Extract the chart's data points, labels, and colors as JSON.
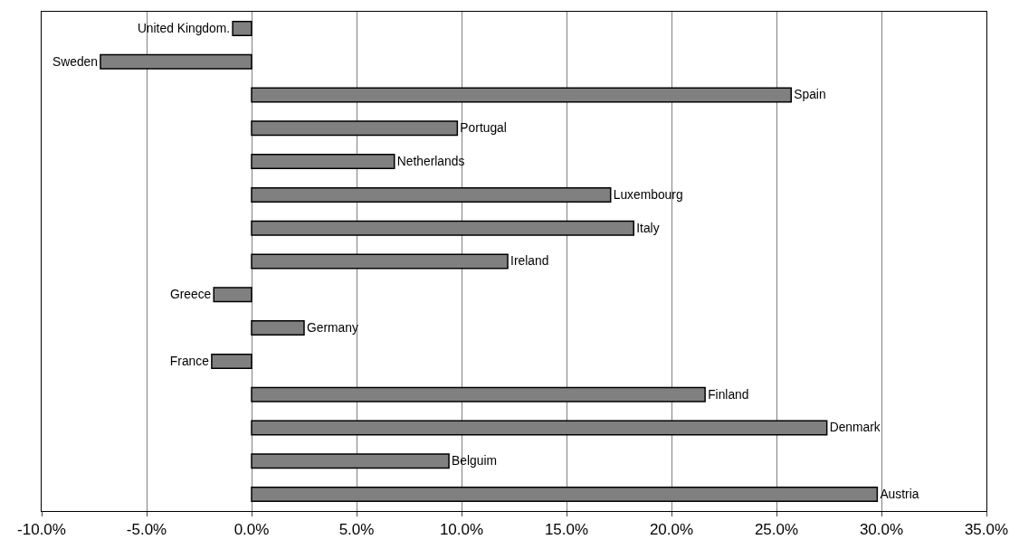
{
  "chart_data": {
    "type": "bar",
    "orientation": "horizontal",
    "categories": [
      "United Kingdom.",
      "Sweden",
      "Spain",
      "Portugal",
      "Netherlands",
      "Luxembourg",
      "Italy",
      "Ireland",
      "Greece",
      "Germany",
      "France",
      "Finland",
      "Denmark",
      "Belguim",
      "Austria"
    ],
    "values": [
      -0.9,
      -7.2,
      25.7,
      9.8,
      6.8,
      17.1,
      18.2,
      12.2,
      -1.8,
      2.5,
      -1.9,
      21.6,
      27.4,
      9.4,
      29.8
    ],
    "color": "#808080",
    "xlim": [
      -10,
      35
    ],
    "xticks": [
      {
        "value": -10,
        "label": "-10.0%"
      },
      {
        "value": -5,
        "label": "-5.0%"
      },
      {
        "value": 0,
        "label": "0.0%"
      },
      {
        "value": 5,
        "label": "5.0%"
      },
      {
        "value": 10,
        "label": "10.0%"
      },
      {
        "value": 15,
        "label": "15.0%"
      },
      {
        "value": 20,
        "label": "20.0%"
      },
      {
        "value": 25,
        "label": "25.0%"
      },
      {
        "value": 30,
        "label": "30.0%"
      },
      {
        "value": 35,
        "label": "35.0%"
      }
    ],
    "grid": "x",
    "legend": false,
    "tick_labels": "x"
  }
}
